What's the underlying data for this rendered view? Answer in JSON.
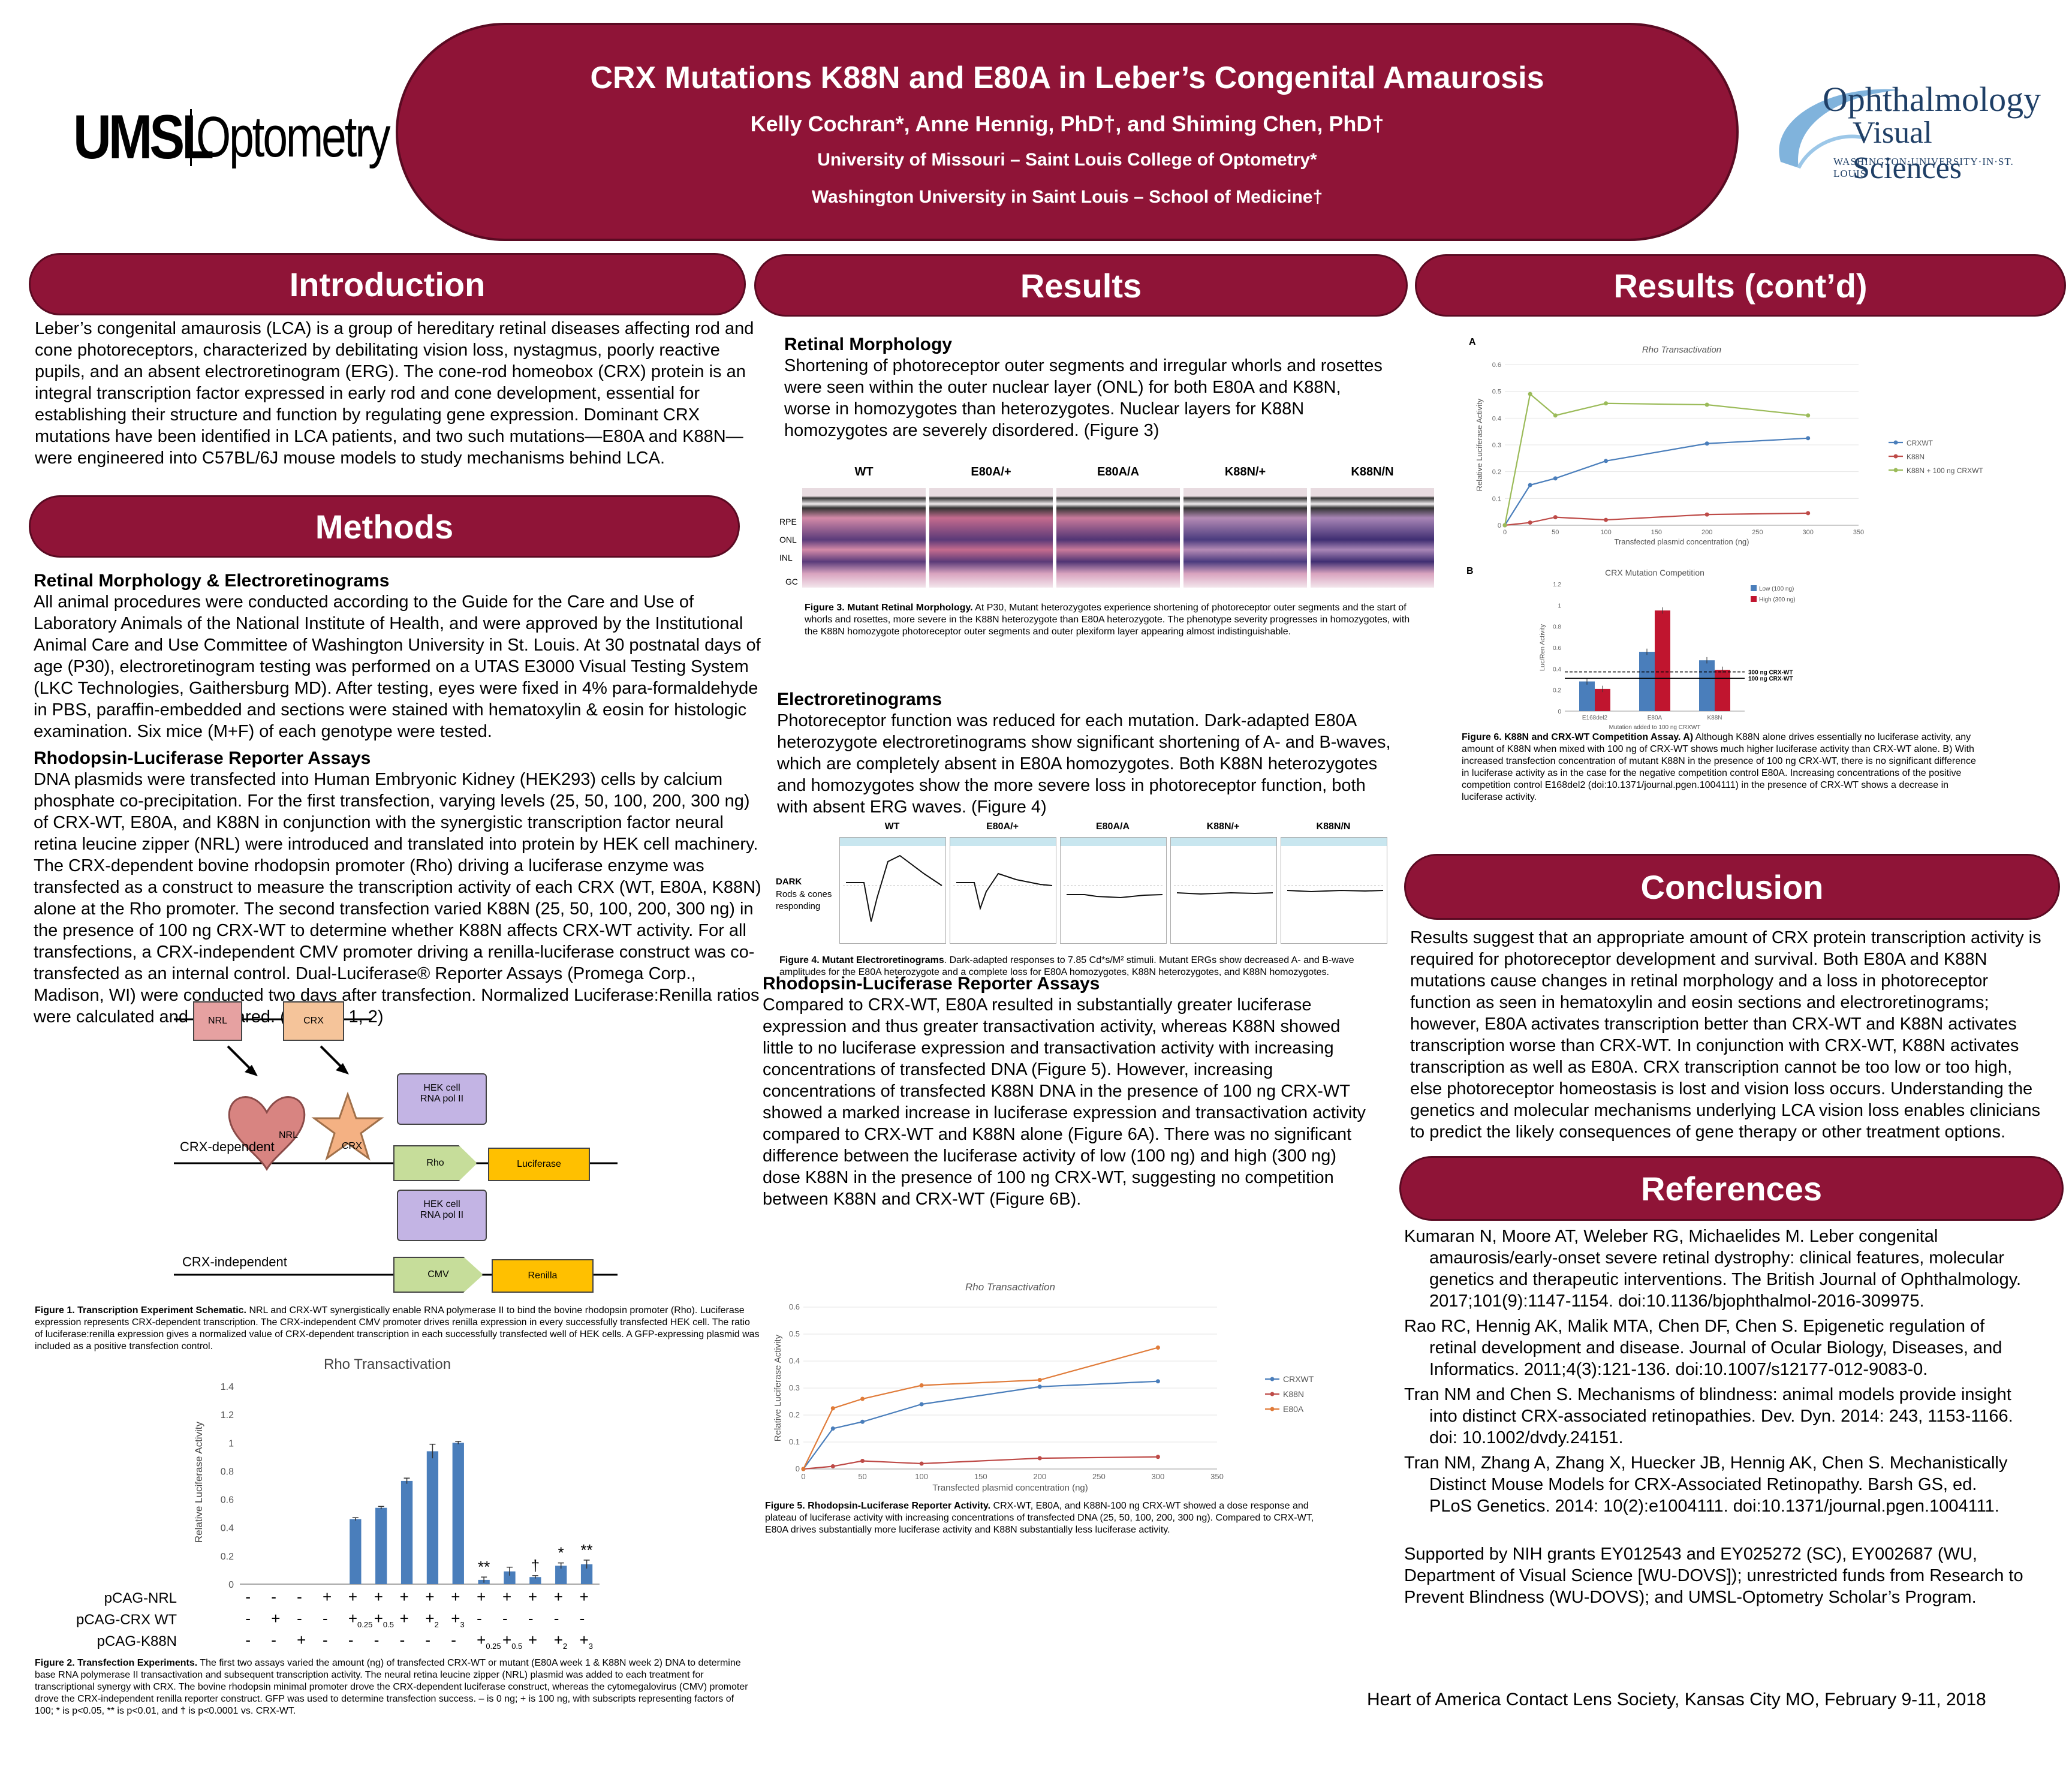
{
  "header": {
    "title": "CRX Mutations K88N and E80A in Leber’s Congenital Amaurosis",
    "authors": "Kelly Cochran*, Anne Hennig, PhD†, and Shiming Chen, PhD†",
    "affil1": "University of Missouri – Saint Louis College of Optometry*",
    "affil2": "Washington University in Saint Louis – School of Medicine†",
    "left_logo_bold": "UMSL",
    "left_logo_light": "Optometry",
    "right_logo_line1": "Ophthalmology",
    "right_logo_line2": "Visual Sciences",
    "right_logo_line3": "WASHINGTON·UNIVERSITY·IN·ST. LOUIS"
  },
  "intro": {
    "heading": "Introduction",
    "text": "Leber’s congenital amaurosis (LCA) is a group of hereditary retinal diseases affecting rod and cone photoreceptors, characterized by debilitating vision loss, nystagmus, poorly reactive pupils, and an absent electroretinogram (ERG). The cone-rod homeobox (CRX) protein is an integral transcription factor expressed in early rod and cone development, essential for establishing their structure and function by regulating gene expression. Dominant CRX mutations have been identified in LCA patients, and two such mutations—E80A and K88N—were engineered into C57BL/6J mouse models to study mechanisms behind LCA."
  },
  "methods": {
    "heading": "Methods",
    "sub1": "Retinal Morphology & Electroretinograms",
    "text1": "All animal procedures were conducted according to the Guide for the Care and Use of Laboratory Animals of the National Institute of Health, and were approved by the Institutional Animal Care and Use Committee of Washington University in St. Louis. At 30 postnatal days of age (P30), electroretinogram testing was performed on a UTAS E3000 Visual Testing System (LKC Technologies, Gaithersburg MD). After testing, eyes were fixed in 4% para-formaldehyde in PBS, paraffin-embedded and sections were stained with hematoxylin & eosin for histologic examination. Six mice (M+F) of each genotype were tested.",
    "sub2": "Rhodopsin-Luciferase Reporter Assays",
    "text2": "DNA plasmids were transfected into Human Embryonic Kidney (HEK293) cells by calcium phosphate co-precipitation. For the first transfection, varying levels (25, 50, 100, 200, 300 ng) of CRX-WT, E80A, and K88N in conjunction with the synergistic transcription factor neural retina leucine zipper (NRL) were introduced and translated into protein by HEK cell machinery. The CRX-dependent bovine rhodopsin promoter (Rho) driving a luciferase enzyme was transfected as a construct to measure the transcription activity of each CRX (WT, E80A, K88N) alone at the Rho promoter. The second transfection varied K88N (25, 50, 100, 200, 300 ng) in the presence of 100 ng CRX-WT to determine whether K88N affects CRX-WT activity. For all transfections, a CRX-independent CMV promoter driving a renilla-luciferase construct was co-transfected as an internal control. Dual-Luciferase® Reporter Assays (Promega Corp., Madison, WI) were conducted two days after transfection. Normalized Luciferase:Renilla ratios were calculated and compared. (Figures 1, 2)"
  },
  "fig1": {
    "nrl_box": "NRL",
    "crx_box": "CRX",
    "hek1": "HEK cell\nRNA pol II",
    "hek2": "HEK cell\nRNA pol II",
    "heart": "NRL",
    "star": "CRX",
    "rho": "Rho",
    "luciferase": "Luciferase",
    "cmv": "CMV",
    "renilla": "Renilla",
    "dep_label": "CRX-dependent",
    "indep_label": "CRX-independent",
    "caption_bold": "Figure 1. Transcription Experiment Schematic.",
    "caption": " NRL and CRX-WT synergistically enable RNA polymerase II to bind the bovine rhodopsin promoter (Rho). Luciferase expression represents CRX-dependent transcription. The CRX-independent CMV promoter drives renilla expression in every successfully transfected HEK cell. The ratio of luciferase:renilla expression gives a normalized value of CRX-dependent transcription in each successfully transfected well of HEK cells. A GFP-expressing plasmid was included as a positive transfection control."
  },
  "fig2": {
    "title": "Rho Transactivation",
    "ylabel": "Relative Luciferase Activity",
    "row_labels": [
      "pCAG-NRL",
      "pCAG-CRX WT",
      "pCAG-K88N"
    ],
    "row_nrl": [
      "-",
      "-",
      "-",
      "+",
      "+",
      "+",
      "+",
      "+",
      "+",
      "+",
      "+",
      "+",
      "+",
      "+"
    ],
    "row_crx": [
      "-",
      "+",
      "-",
      "-",
      "+0.25",
      "+0.5",
      "+",
      "+2",
      "+3",
      "-",
      "-",
      "-",
      "-",
      "-"
    ],
    "row_k88n": [
      "-",
      "-",
      "+",
      "-",
      "-",
      "-",
      "-",
      "-",
      "-",
      "+0.25",
      "+0.5",
      "+",
      "+2",
      "+3"
    ],
    "sig": [
      "",
      "",
      "",
      "",
      "",
      "",
      "",
      "",
      "",
      "**",
      "",
      "†",
      "*",
      "**"
    ],
    "caption_bold": "Figure 2. Transfection Experiments.",
    "caption": " The first two assays varied the amount (ng) of transfected CRX-WT or mutant (E80A week 1 & K88N week 2) DNA to determine base RNA polymerase II transactivation and subsequent transcription activity. The neural retina leucine zipper (NRL) plasmid was added to each treatment for transcriptional synergy with CRX. The bovine rhodopsin minimal promoter drove the CRX-dependent luciferase construct, whereas the cytomegalovirus (CMV) promoter drove the CRX-independent renilla reporter construct. GFP was used to determine transfection success. – is 0 ng; + is 100 ng, with subscripts representing factors of 100; * is p<0.05, ** is p<0.01, and † is p<0.0001 vs. CRX-WT."
  },
  "results": {
    "heading": "Results",
    "sub1": "Retinal Morphology",
    "text1": "Shortening of photoreceptor outer segments and irregular whorls and rosettes were seen within the outer nuclear layer (ONL) for both E80A and K88N, worse in homozygotes than heterozygotes. Nuclear layers for K88N homozygotes are severely disordered. (Figure 3)",
    "fig3_cols": [
      "WT",
      "E80A/+",
      "E80A/A",
      "K88N/+",
      "K88N/N"
    ],
    "fig3_layers": [
      "RPE",
      "ONL",
      "INL",
      "GC"
    ],
    "fig3_caption_bold": "Figure 3. Mutant Retinal Morphology.",
    "fig3_caption": " At P30, Mutant heterozygotes experience shortening of photoreceptor outer segments and the start of whorls and rosettes, more severe in the K88N heterozygote than E80A heterozygote. The phenotype severity progresses in homozygotes, with the K88N homozygote photoreceptor outer segments and outer plexiform layer appearing almost indistinguishable.",
    "sub2": "Electroretinograms",
    "text2": "Photoreceptor function was reduced for each mutation. Dark-adapted E80A heterozygote electroretinograms show significant shortening of A- and B-waves, which are completely absent in E80A homozygotes. Both K88N heterozygotes and homozygotes show the more severe loss in photoreceptor function, both with absent ERG waves. (Figure 4)",
    "fig4_cols": [
      "WT",
      "E80A/+",
      "E80A/A",
      "K88N/+",
      "K88N/N"
    ],
    "fig4_side1": "DARK",
    "fig4_side2": "Rods & cones responding",
    "fig4_caption_bold": "Figure 4. Mutant Electroretinograms",
    "fig4_caption": ". Dark-adapted responses to 7.85 Cd*s/M² stimuli. Mutant ERGs show decreased A- and B-wave amplitudes for the E80A heterozygote and a complete loss for E80A homozygotes, K88N heterozygotes, and K88N homozygotes.",
    "sub3": "Rhodopsin-Luciferase Reporter Assays",
    "text3": "Compared to CRX-WT, E80A resulted in substantially greater luciferase expression and thus greater transactivation activity, whereas K88N showed little to no luciferase expression and transactivation activity with increasing concentrations of transfected DNA (Figure 5). However, increasing concentrations of transfected K88N DNA in the presence of 100 ng CRX-WT showed a marked increase in luciferase expression and transactivation activity compared to CRX-WT and K88N alone (Figure 6A). There was no significant difference between the luciferase activity of low (100 ng) and high (300 ng) dose K88N in the presence of 100 ng CRX-WT, suggesting no competition between K88N and CRX-WT (Figure 6B).",
    "fig5_caption_bold": "Figure 5. Rhodopsin-Luciferase Reporter Activity.",
    "fig5_caption": " CRX-WT, E80A, and K88N-100 ng CRX-WT showed a dose response and plateau of luciferase activity with increasing concentrations of transfected DNA (25, 50, 100, 200, 300 ng). Compared to CRX-WT, E80A drives substantially more luciferase activity and K88N substantially less luciferase activity."
  },
  "results2": {
    "heading": "Results (cont’d)",
    "panel_a": "A",
    "panel_b": "B",
    "fig6_caption_bold": "Figure 6. K88N and CRX-WT Competition Assay. A)",
    "fig6_caption": " Although K88N alone drives essentially no luciferase activity, any amount of K88N when mixed with 100 ng of CRX-WT shows much higher luciferase activity than CRX-WT alone. B) With increased transfection concentration of mutant K88N in the presence of 100 ng CRX-WT, there is no significant difference in luciferase activity as in the case for the negative competition control E80A. Increasing concentrations of the positive competition control E168del2 (doi:10.1371/journal.pgen.1004111) in the presence of CRX-WT shows a decrease in luciferase activity."
  },
  "conclusion": {
    "heading": "Conclusion",
    "text": "Results suggest that an appropriate amount of CRX protein transcription activity is required for photoreceptor development and survival. Both E80A and K88N mutations cause changes in retinal morphology and a loss in photoreceptor function as seen in hematoxylin and eosin sections and electroretinograms; however, E80A activates transcription better than CRX-WT and K88N activates transcription worse than CRX-WT. In conjunction with CRX-WT, K88N activates transcription as well as E80A. CRX transcription cannot be too low or too high, else photoreceptor homeostasis is lost and vision loss occurs. Understanding the genetics and molecular mechanisms underlying LCA vision loss enables clinicians to predict the likely consequences of gene therapy or other treatment options."
  },
  "references": {
    "heading": "References",
    "items": [
      "Kumaran N, Moore AT, Weleber RG, Michaelides M. Leber congenital amaurosis/early-onset severe retinal dystrophy: clinical features, molecular genetics and therapeutic interventions. The British Journal of Ophthalmology. 2017;101(9):1147-1154. doi:10.1136/bjophthalmol-2016-309975.",
      "Rao RC, Hennig AK, Malik MTA, Chen DF, Chen S. Epigenetic regulation of retinal development and disease. Journal of Ocular Biology, Diseases, and Informatics. 2011;4(3):121-136. doi:10.1007/s12177-012-9083-0.",
      "Tran NM and Chen S. Mechanisms of blindness: animal models provide insight into distinct CRX-associated retinopathies. Dev. Dyn. 2014: 243, 1153-1166. doi: 10.1002/dvdy.24151.",
      "Tran NM, Zhang A, Zhang X, Huecker JB, Hennig AK, Chen S. Mechanistically Distinct Mouse Models for CRX-Associated Retinopathy. Barsh GS, ed. PLoS Genetics. 2014: 10(2):e1004111. doi:10.1371/journal.pgen.1004111."
    ],
    "support": "Supported by NIH grants EY012543 and EY025272 (SC), EY002687 (WU, Department of Visual Science [WU-DOVS]); unrestricted funds from Research to Prevent Blindness (WU-DOVS); and UMSL-Optometry Scholar’s Program."
  },
  "footer": "Heart of America Contact Lens Society, Kansas City MO, February 9-11, 2018",
  "colors": {
    "maroon": "#8f1437",
    "blue": "#4a7ebb",
    "red": "#be4b48",
    "green": "#9bbb59",
    "orange": "#e07b39"
  },
  "chart_data": [
    {
      "id": "fig2",
      "type": "bar",
      "title": "Rho Transactivation",
      "ylabel": "Relative Luciferase Activity",
      "ylim": [
        0,
        1.4
      ],
      "yticks": [
        0,
        0.2,
        0.4,
        0.6,
        0.8,
        1,
        1.2,
        1.4
      ],
      "values": [
        0,
        0,
        0,
        0,
        0.46,
        0.54,
        0.73,
        0.94,
        1.0,
        0.03,
        0.09,
        0.05,
        0.13,
        0.14
      ],
      "errors": [
        0,
        0,
        0,
        0,
        0.01,
        0.01,
        0.02,
        0.05,
        0.01,
        0.02,
        0.03,
        0.01,
        0.02,
        0.03
      ]
    },
    {
      "id": "fig5",
      "type": "line",
      "title": "Rho Transactivation",
      "xlabel": "Transfected plasmid concentration (ng)",
      "ylabel": "Relative Luciferase Activity",
      "xlim": [
        0,
        350
      ],
      "ylim": [
        0,
        0.6
      ],
      "xticks": [
        0,
        50,
        100,
        150,
        200,
        250,
        300,
        350
      ],
      "yticks": [
        0,
        0.1,
        0.2,
        0.3,
        0.4,
        0.5,
        0.6
      ],
      "x": [
        0,
        25,
        50,
        100,
        200,
        300
      ],
      "series": [
        {
          "name": "CRXWT",
          "values": [
            0,
            0.15,
            0.175,
            0.24,
            0.305,
            0.325
          ],
          "color": "#4a7ebb"
        },
        {
          "name": "K88N",
          "values": [
            0,
            0.01,
            0.03,
            0.02,
            0.04,
            0.045
          ],
          "color": "#be4b48"
        },
        {
          "name": "E80A",
          "values": [
            0,
            0.225,
            0.26,
            0.31,
            0.33,
            0.45
          ],
          "color": "#e07b39"
        }
      ]
    },
    {
      "id": "fig6a",
      "type": "line",
      "title": "Rho Transactivation",
      "xlabel": "Transfected plasmid concentration (ng)",
      "ylabel": "Relative Luciferase Activity",
      "xlim": [
        0,
        350
      ],
      "ylim": [
        0,
        0.6
      ],
      "xticks": [
        0,
        50,
        100,
        150,
        200,
        250,
        300,
        350
      ],
      "yticks": [
        0,
        0.1,
        0.2,
        0.3,
        0.4,
        0.5,
        0.6
      ],
      "x": [
        0,
        25,
        50,
        100,
        200,
        300
      ],
      "series": [
        {
          "name": "CRXWT",
          "values": [
            0,
            0.15,
            0.175,
            0.24,
            0.305,
            0.325
          ],
          "color": "#4a7ebb"
        },
        {
          "name": "K88N",
          "values": [
            0,
            0.01,
            0.03,
            0.02,
            0.04,
            0.045
          ],
          "color": "#be4b48"
        },
        {
          "name": "K88N + 100 ng CRXWT",
          "values": [
            0,
            0.49,
            0.41,
            0.455,
            0.45,
            0.41
          ],
          "color": "#9bbb59"
        }
      ]
    },
    {
      "id": "fig6b",
      "type": "bar",
      "title": "CRX Mutation Competition",
      "xlabel": "Mutation added to 100 ng CRXWT",
      "ylabel": "Luc/Ren Activity",
      "ylim": [
        0,
        1.2
      ],
      "yticks": [
        0,
        0.2,
        0.4,
        0.6,
        0.8,
        1,
        1.2
      ],
      "categories": [
        "E168del2",
        "E80A",
        "K88N"
      ],
      "series": [
        {
          "name": "Low (100 ng)",
          "values": [
            0.28,
            0.56,
            0.48
          ],
          "color": "#4a7ebb"
        },
        {
          "name": "High (300 ng)",
          "values": [
            0.21,
            0.95,
            0.39
          ],
          "color": "#c0152f"
        }
      ],
      "reference_lines": [
        {
          "label": "300 ng CRX-WT",
          "value": 0.37
        },
        {
          "label": "100 ng CRX-WT",
          "value": 0.31
        }
      ]
    }
  ]
}
